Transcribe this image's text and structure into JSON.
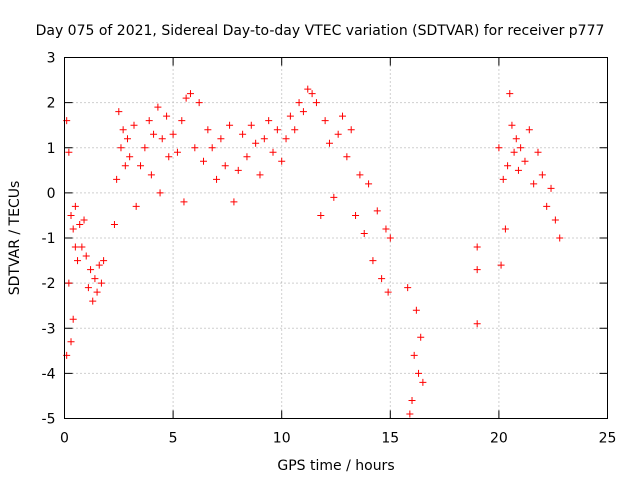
{
  "chart_data": {
    "type": "scatter",
    "title": "Day 075 of 2021, Sidereal Day-to-day VTEC variation (SDTVAR) for receiver p777",
    "xlabel": "GPS time / hours",
    "ylabel": "SDTVAR / TECUs",
    "xlim": [
      0,
      25
    ],
    "ylim": [
      -5,
      3
    ],
    "xticks": [
      0,
      5,
      10,
      15,
      20,
      25
    ],
    "yticks": [
      -5,
      -4,
      -3,
      -2,
      -1,
      0,
      1,
      2,
      3
    ],
    "grid": true,
    "marker": "plus",
    "color": "#ff0000",
    "series": [
      {
        "name": "SDTVAR",
        "points": [
          [
            0.1,
            1.6
          ],
          [
            0.1,
            -3.6
          ],
          [
            0.2,
            -2.0
          ],
          [
            0.2,
            0.9
          ],
          [
            0.3,
            -3.3
          ],
          [
            0.3,
            -0.5
          ],
          [
            0.4,
            -2.8
          ],
          [
            0.4,
            -0.8
          ],
          [
            0.5,
            -1.2
          ],
          [
            0.5,
            -0.3
          ],
          [
            0.6,
            -1.5
          ],
          [
            0.7,
            -0.7
          ],
          [
            0.8,
            -1.2
          ],
          [
            0.9,
            -0.6
          ],
          [
            1.0,
            -1.4
          ],
          [
            1.1,
            -2.1
          ],
          [
            1.2,
            -1.7
          ],
          [
            1.3,
            -2.4
          ],
          [
            1.4,
            -1.9
          ],
          [
            1.5,
            -2.2
          ],
          [
            1.6,
            -1.6
          ],
          [
            1.7,
            -2.0
          ],
          [
            1.8,
            -1.5
          ],
          [
            2.3,
            -0.7
          ],
          [
            2.4,
            0.3
          ],
          [
            2.5,
            1.8
          ],
          [
            2.6,
            1.0
          ],
          [
            2.7,
            1.4
          ],
          [
            2.8,
            0.6
          ],
          [
            2.9,
            1.2
          ],
          [
            3.0,
            0.8
          ],
          [
            3.2,
            1.5
          ],
          [
            3.3,
            -0.3
          ],
          [
            3.5,
            0.6
          ],
          [
            3.7,
            1.0
          ],
          [
            3.9,
            1.6
          ],
          [
            4.0,
            0.4
          ],
          [
            4.1,
            1.3
          ],
          [
            4.3,
            1.9
          ],
          [
            4.4,
            0.0
          ],
          [
            4.5,
            1.2
          ],
          [
            4.7,
            1.7
          ],
          [
            4.8,
            0.8
          ],
          [
            5.0,
            1.3
          ],
          [
            5.2,
            0.9
          ],
          [
            5.4,
            1.6
          ],
          [
            5.5,
            -0.2
          ],
          [
            5.6,
            2.1
          ],
          [
            5.8,
            2.2
          ],
          [
            6.0,
            1.0
          ],
          [
            6.2,
            2.0
          ],
          [
            6.4,
            0.7
          ],
          [
            6.6,
            1.4
          ],
          [
            6.8,
            1.0
          ],
          [
            7.0,
            0.3
          ],
          [
            7.2,
            1.2
          ],
          [
            7.4,
            0.6
          ],
          [
            7.6,
            1.5
          ],
          [
            7.8,
            -0.2
          ],
          [
            8.0,
            0.5
          ],
          [
            8.2,
            1.3
          ],
          [
            8.4,
            0.8
          ],
          [
            8.6,
            1.5
          ],
          [
            8.8,
            1.1
          ],
          [
            9.0,
            0.4
          ],
          [
            9.2,
            1.2
          ],
          [
            9.4,
            1.6
          ],
          [
            9.6,
            0.9
          ],
          [
            9.8,
            1.4
          ],
          [
            10.0,
            0.7
          ],
          [
            10.2,
            1.2
          ],
          [
            10.4,
            1.7
          ],
          [
            10.6,
            1.4
          ],
          [
            10.8,
            2.0
          ],
          [
            11.0,
            1.8
          ],
          [
            11.2,
            2.3
          ],
          [
            11.4,
            2.2
          ],
          [
            11.6,
            2.0
          ],
          [
            11.8,
            -0.5
          ],
          [
            12.0,
            1.6
          ],
          [
            12.2,
            1.1
          ],
          [
            12.4,
            -0.1
          ],
          [
            12.6,
            1.3
          ],
          [
            12.8,
            1.7
          ],
          [
            13.0,
            0.8
          ],
          [
            13.2,
            1.4
          ],
          [
            13.4,
            -0.5
          ],
          [
            13.6,
            0.4
          ],
          [
            13.8,
            -0.9
          ],
          [
            14.0,
            0.2
          ],
          [
            14.2,
            -1.5
          ],
          [
            14.4,
            -0.4
          ],
          [
            14.6,
            -1.9
          ],
          [
            14.8,
            -0.8
          ],
          [
            14.9,
            -2.2
          ],
          [
            15.0,
            -1.0
          ],
          [
            15.8,
            -2.1
          ],
          [
            15.9,
            -4.9
          ],
          [
            16.0,
            -4.6
          ],
          [
            16.1,
            -3.6
          ],
          [
            16.2,
            -2.6
          ],
          [
            16.3,
            -4.0
          ],
          [
            16.4,
            -3.2
          ],
          [
            16.5,
            -4.2
          ],
          [
            19.0,
            -1.2
          ],
          [
            19.0,
            -1.7
          ],
          [
            19.0,
            -2.9
          ],
          [
            20.0,
            1.0
          ],
          [
            20.1,
            -1.6
          ],
          [
            20.2,
            0.3
          ],
          [
            20.3,
            -0.8
          ],
          [
            20.4,
            0.6
          ],
          [
            20.5,
            2.2
          ],
          [
            20.6,
            1.5
          ],
          [
            20.7,
            0.9
          ],
          [
            20.8,
            1.2
          ],
          [
            20.9,
            0.5
          ],
          [
            21.0,
            1.0
          ],
          [
            21.2,
            0.7
          ],
          [
            21.4,
            1.4
          ],
          [
            21.6,
            0.2
          ],
          [
            21.8,
            0.9
          ],
          [
            22.0,
            0.4
          ],
          [
            22.2,
            -0.3
          ],
          [
            22.4,
            0.1
          ],
          [
            22.6,
            -0.6
          ],
          [
            22.8,
            -1.0
          ]
        ]
      }
    ]
  }
}
